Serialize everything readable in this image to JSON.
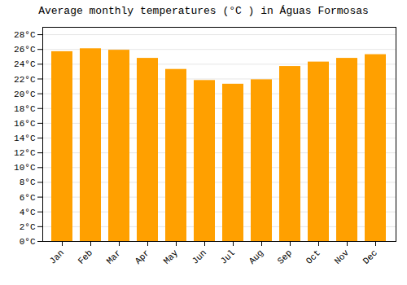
{
  "chart_data": {
    "type": "bar",
    "title": "Average monthly temperatures (°C ) in Águas Formosas",
    "categories": [
      "Jan",
      "Feb",
      "Mar",
      "Apr",
      "May",
      "Jun",
      "Jul",
      "Aug",
      "Sep",
      "Oct",
      "Nov",
      "Dec"
    ],
    "values": [
      25.7,
      26.1,
      25.9,
      24.8,
      23.3,
      21.8,
      21.3,
      21.9,
      23.7,
      24.3,
      24.8,
      25.3
    ],
    "color": "#FFA000",
    "ylim": [
      0,
      29
    ],
    "yticks": [
      {
        "value": 0,
        "label": "0°C"
      },
      {
        "value": 2,
        "label": "2°C"
      },
      {
        "value": 4,
        "label": "4°C"
      },
      {
        "value": 6,
        "label": "6°C"
      },
      {
        "value": 8,
        "label": "8°C"
      },
      {
        "value": 10,
        "label": "10°C"
      },
      {
        "value": 12,
        "label": "12°C"
      },
      {
        "value": 14,
        "label": "14°C"
      },
      {
        "value": 16,
        "label": "16°C"
      },
      {
        "value": 18,
        "label": "18°C"
      },
      {
        "value": 20,
        "label": "20°C"
      },
      {
        "value": 22,
        "label": "22°C"
      },
      {
        "value": 24,
        "label": "24°C"
      },
      {
        "value": 26,
        "label": "26°C"
      },
      {
        "value": 28,
        "label": "28°C"
      }
    ],
    "grid": true
  }
}
